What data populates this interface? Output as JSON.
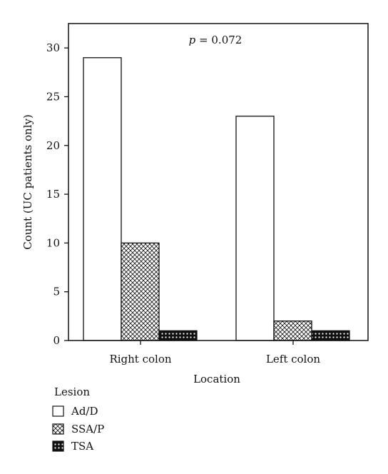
{
  "chart_data": {
    "type": "bar",
    "title": "",
    "xlabel": "Location",
    "ylabel": "Count (UC patients only)",
    "ylim": [
      0,
      32.5
    ],
    "yticks": [
      0,
      5,
      10,
      15,
      20,
      25,
      30
    ],
    "categories": [
      "Right colon",
      "Left colon"
    ],
    "series": [
      {
        "name": "Ad/D",
        "values": [
          29,
          23
        ],
        "pattern": "none"
      },
      {
        "name": "SSA/P",
        "values": [
          10,
          2
        ],
        "pattern": "crosshatch"
      },
      {
        "name": "TSA",
        "values": [
          1,
          1
        ],
        "pattern": "dots"
      }
    ],
    "annotation": {
      "italic_part": "p",
      "text_part": " = 0.072"
    },
    "legend": {
      "title": "Lesion",
      "position": "bottom-left"
    },
    "grid": false,
    "colors": {
      "axis": "#111111",
      "bar_fill": "#ffffff",
      "pattern": "#111111",
      "background": "#ffffff"
    }
  }
}
